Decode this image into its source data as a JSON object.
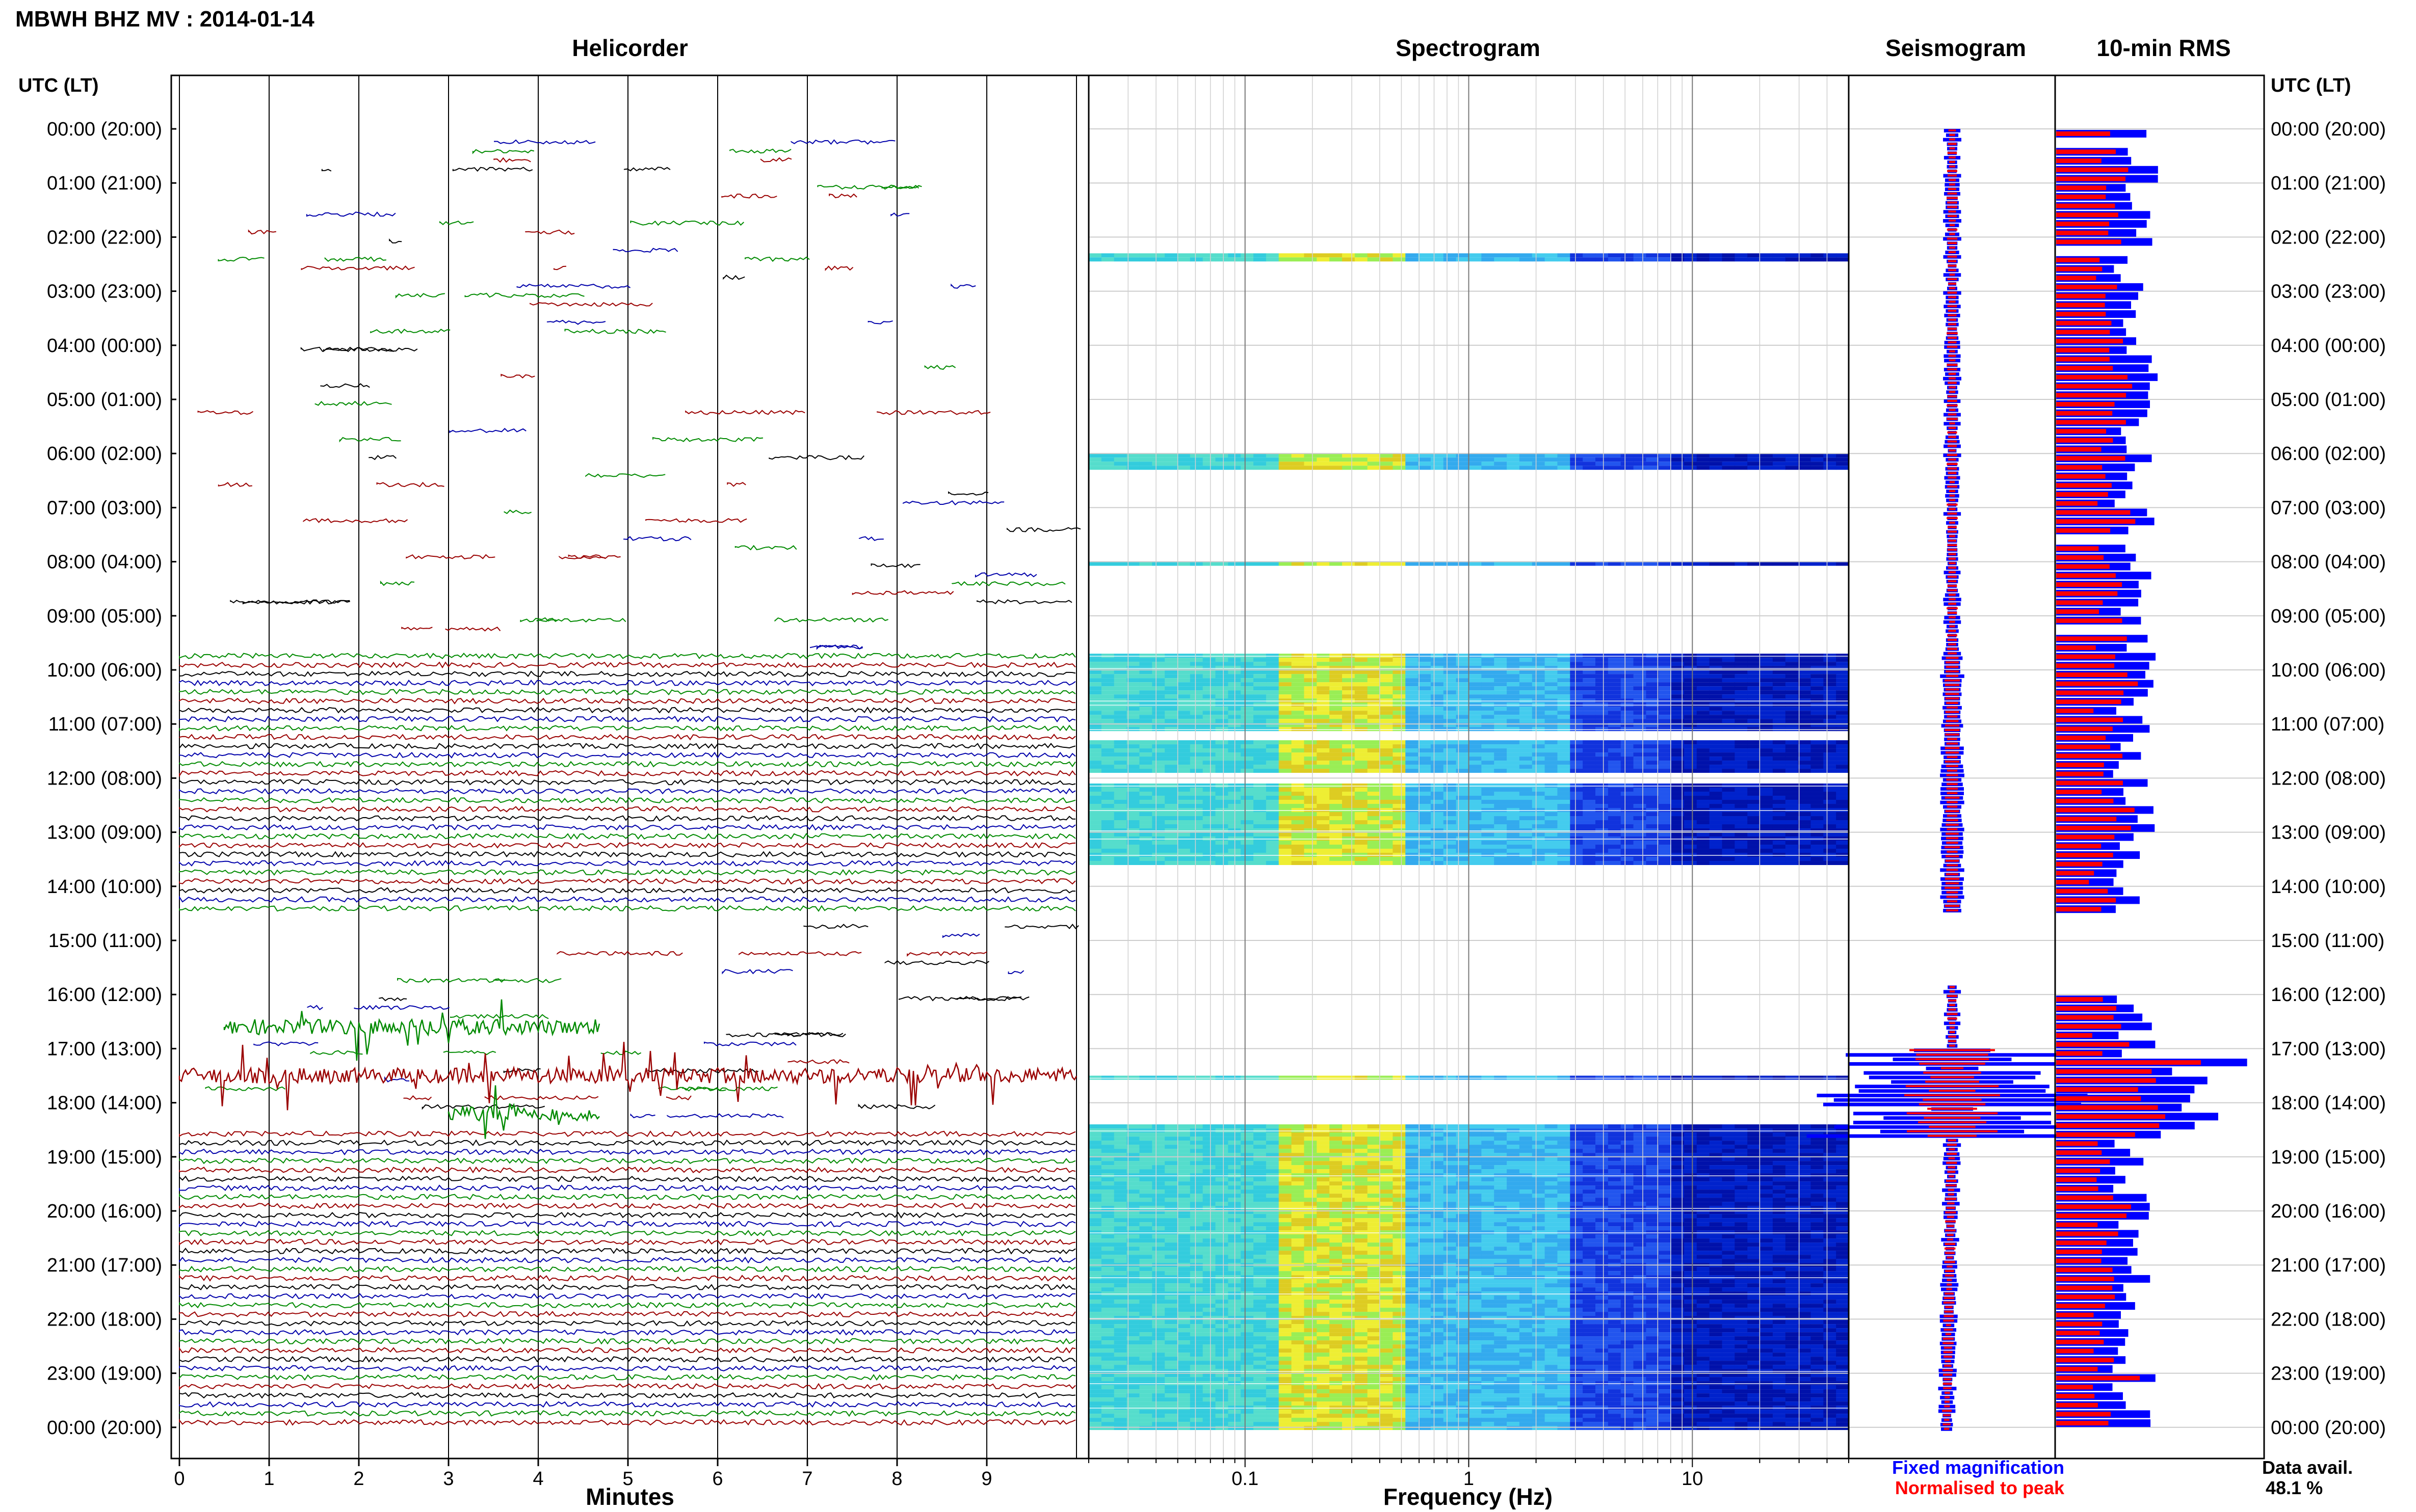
{
  "header": {
    "station_title": "MBWH BHZ MV : 2014-01-14"
  },
  "time_axis": {
    "left_label": "UTC (LT)",
    "right_label": "UTC (LT)",
    "hour_labels": [
      "00:00 (20:00)",
      "01:00 (21:00)",
      "02:00 (22:00)",
      "03:00 (23:00)",
      "04:00 (00:00)",
      "05:00 (01:00)",
      "06:00 (02:00)",
      "07:00 (03:00)",
      "08:00 (04:00)",
      "09:00 (05:00)",
      "10:00 (06:00)",
      "11:00 (07:00)",
      "12:00 (08:00)",
      "13:00 (09:00)",
      "14:00 (10:00)",
      "15:00 (11:00)",
      "16:00 (12:00)",
      "17:00 (13:00)",
      "18:00 (14:00)",
      "19:00 (15:00)",
      "20:00 (16:00)",
      "21:00 (17:00)",
      "22:00 (18:00)",
      "23:00 (19:00)",
      "00:00 (20:00)"
    ]
  },
  "colors": {
    "trace_black": "#000000",
    "trace_blue": "#0000aa",
    "trace_green": "#008a00",
    "trace_red": "#9a0000",
    "fixed_magnification": "#0000ff",
    "normalised_to_peak": "#ff0000"
  },
  "chart_data": [
    {
      "type": "line",
      "title": "Helicorder",
      "xlabel": "Minutes",
      "xticks": [
        "0",
        "1",
        "2",
        "3",
        "4",
        "5",
        "6",
        "7",
        "8",
        "9"
      ],
      "xlim": [
        0,
        10
      ],
      "lines_per_hour": 6,
      "line_colors_cycle": [
        "black",
        "blue",
        "green",
        "red"
      ],
      "data_gaps_utc_hours": [
        [
          0,
          9.6
        ],
        [
          14.5,
          18.5
        ]
      ],
      "events": [
        {
          "time_utc": 16.6,
          "minute_start": 0.5,
          "minute_end": 4.7,
          "description_type": "high-amplitude burst"
        },
        {
          "time_utc": 17.5,
          "minute_start": 0.0,
          "minute_end": 10.0,
          "description_type": "high-amplitude burst"
        },
        {
          "time_utc": 18.2,
          "minute_start": 3.0,
          "minute_end": 4.7,
          "description_type": "high-amplitude burst"
        }
      ]
    },
    {
      "type": "heatmap",
      "title": "Spectrogram",
      "xlabel": "Frequency (Hz)",
      "xscale": "log",
      "xlim": [
        0.02,
        50
      ],
      "xticks": [
        "0.1",
        "1",
        "10"
      ],
      "active_bands_utc_hours": [
        [
          2.3,
          2.4
        ],
        [
          6.0,
          6.3
        ],
        [
          8.0,
          8.05
        ],
        [
          9.7,
          11.1
        ],
        [
          11.3,
          11.9
        ],
        [
          12.1,
          13.6
        ],
        [
          17.5,
          17.55
        ],
        [
          18.4,
          24.0
        ]
      ]
    },
    {
      "type": "line",
      "title": "Seismogram",
      "legend": [
        {
          "name": "Fixed magnification",
          "color": "#0000ff"
        },
        {
          "name": "Normalised to peak",
          "color": "#ff0000"
        }
      ]
    },
    {
      "type": "bar",
      "title": "10-min RMS",
      "orientation": "horizontal",
      "series": [
        {
          "name": "Fixed magnification",
          "color": "#0000ff"
        },
        {
          "name": "Normalised to peak",
          "color": "#ff0000"
        }
      ],
      "data_availability_label": "Data avail.",
      "data_availability_value": "48.1 %"
    }
  ]
}
